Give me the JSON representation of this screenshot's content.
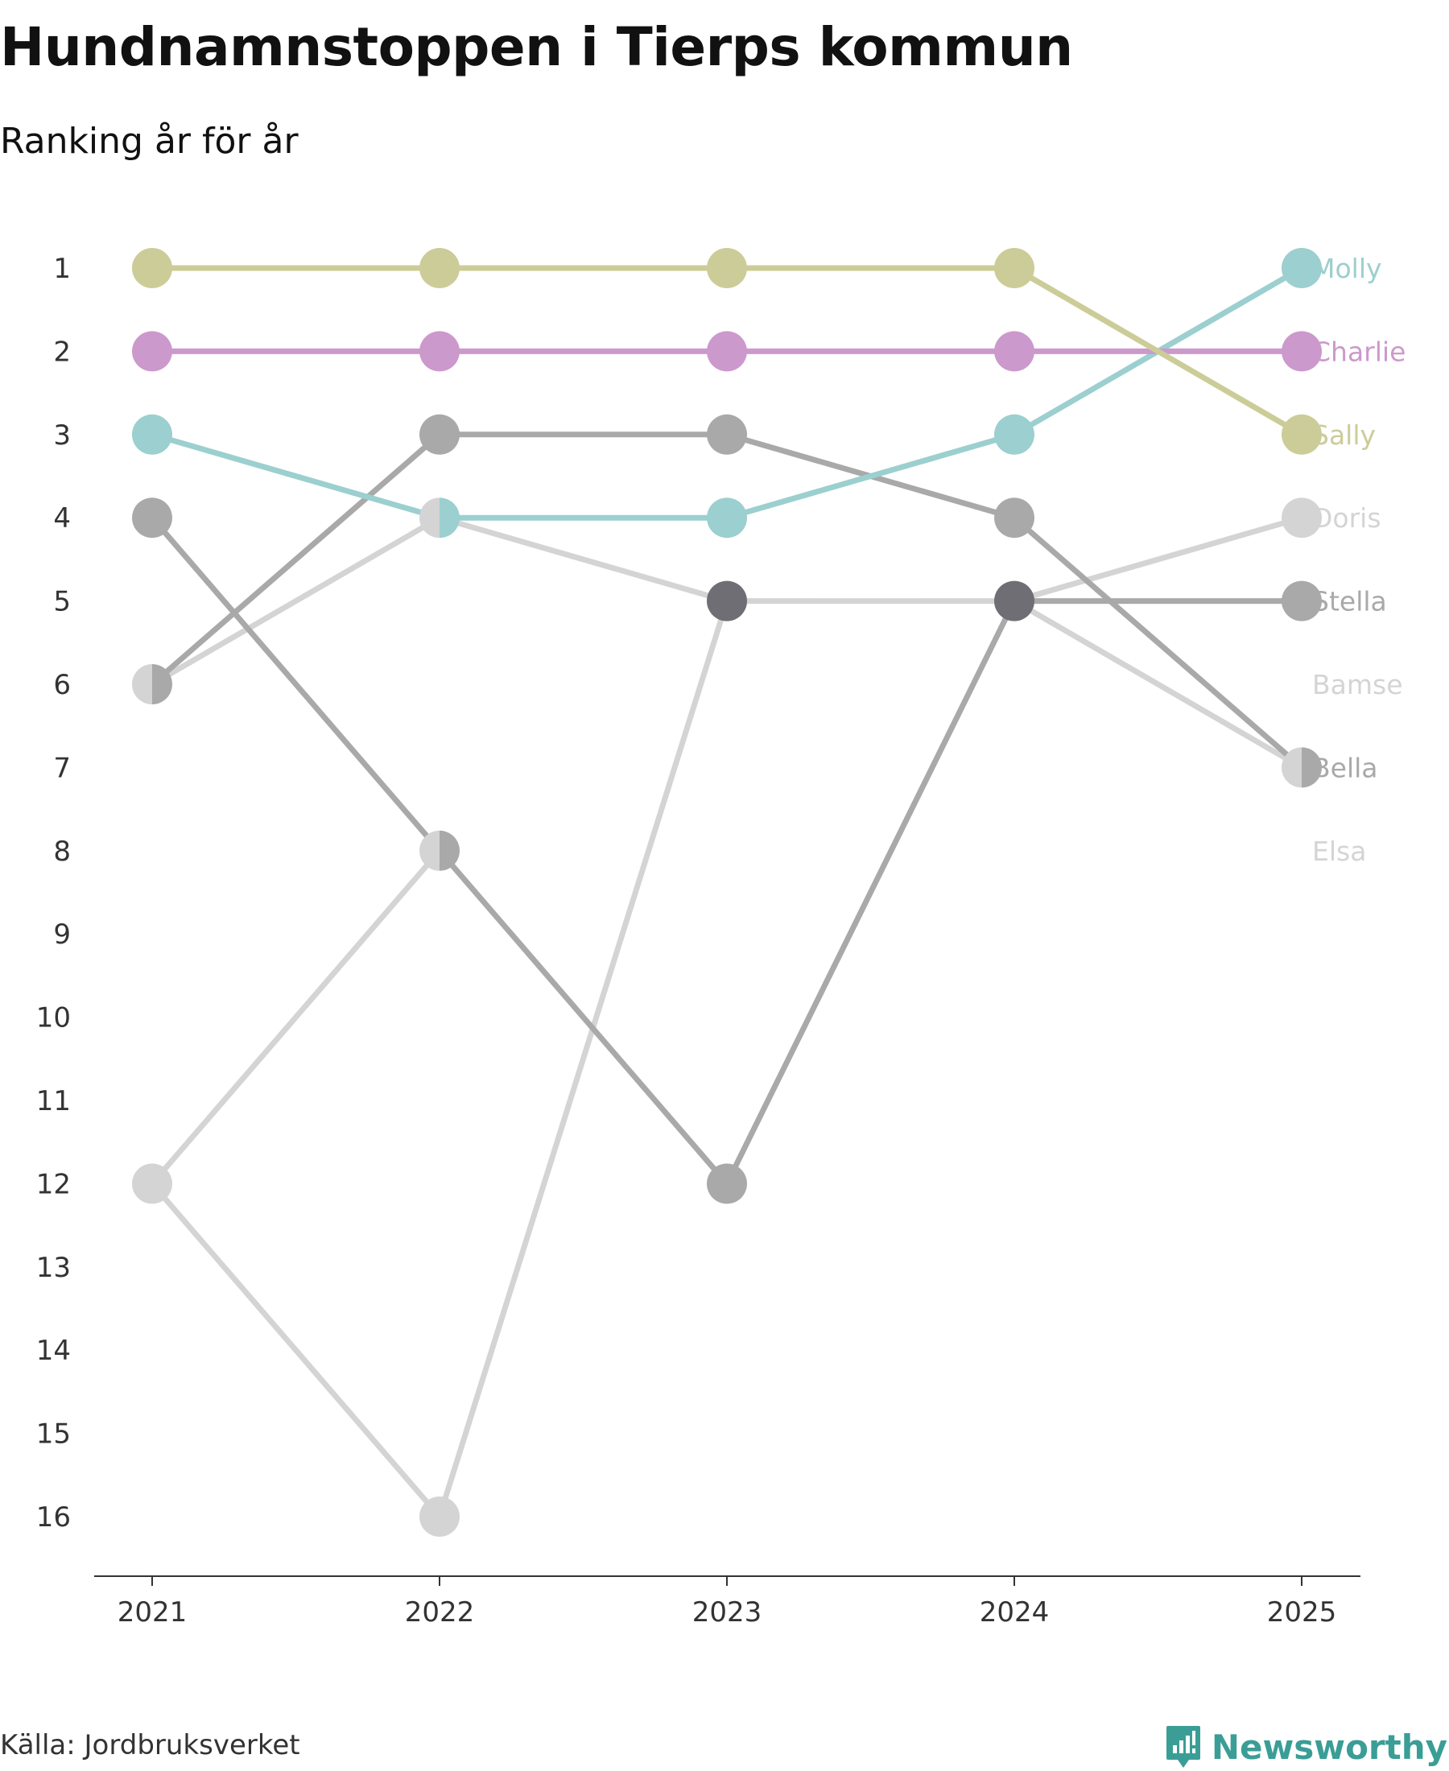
{
  "title": "Hundnamnstoppen i Tierps kommun",
  "subtitle": "Ranking år för år",
  "source": "Källa: Jordbruksverket",
  "brand": {
    "name": "Newsworthy",
    "icon": "newsworthy-logo-icon",
    "color": "#3a9e96"
  },
  "chart_data": {
    "type": "line",
    "title": "Hundnamnstoppen i Tierps kommun",
    "subtitle": "Ranking år för år",
    "xlabel": "",
    "ylabel": "",
    "x": [
      "2021",
      "2022",
      "2023",
      "2024",
      "2025"
    ],
    "y_ticks": [
      1,
      2,
      3,
      4,
      5,
      6,
      7,
      8,
      9,
      10,
      11,
      12,
      13,
      14,
      15,
      16
    ],
    "ylim": [
      1,
      16
    ],
    "y_inverted": true,
    "grid": false,
    "series": [
      {
        "name": "Molly",
        "color": "#9ccfcf",
        "values": [
          3,
          4,
          4,
          3,
          1
        ]
      },
      {
        "name": "Charlie",
        "color": "#cc99cc",
        "values": [
          2,
          2,
          2,
          2,
          2
        ]
      },
      {
        "name": "Sally",
        "color": "#cccc99",
        "values": [
          1,
          1,
          1,
          1,
          3
        ]
      },
      {
        "name": "Doris",
        "color": "#d4d4d4",
        "values": [
          6,
          4,
          5,
          5,
          4
        ]
      },
      {
        "name": "Stella",
        "color": "#a9a9a9",
        "values": [
          4,
          8,
          12,
          5,
          5
        ]
      },
      {
        "name": "Bamse",
        "color": "#d4d4d4",
        "values": [
          12,
          16,
          5,
          null,
          null
        ]
      },
      {
        "name": "Bella",
        "color": "#a9a9a9",
        "values": [
          6,
          3,
          3,
          4,
          7
        ]
      },
      {
        "name": "Elsa",
        "color": "#d4d4d4",
        "values": [
          12,
          8,
          null,
          5,
          7
        ]
      }
    ],
    "highlight_color": "#6e6e74",
    "highlight_points": [
      {
        "x": "2023",
        "y": 5
      },
      {
        "x": "2024",
        "y": 5
      }
    ]
  }
}
